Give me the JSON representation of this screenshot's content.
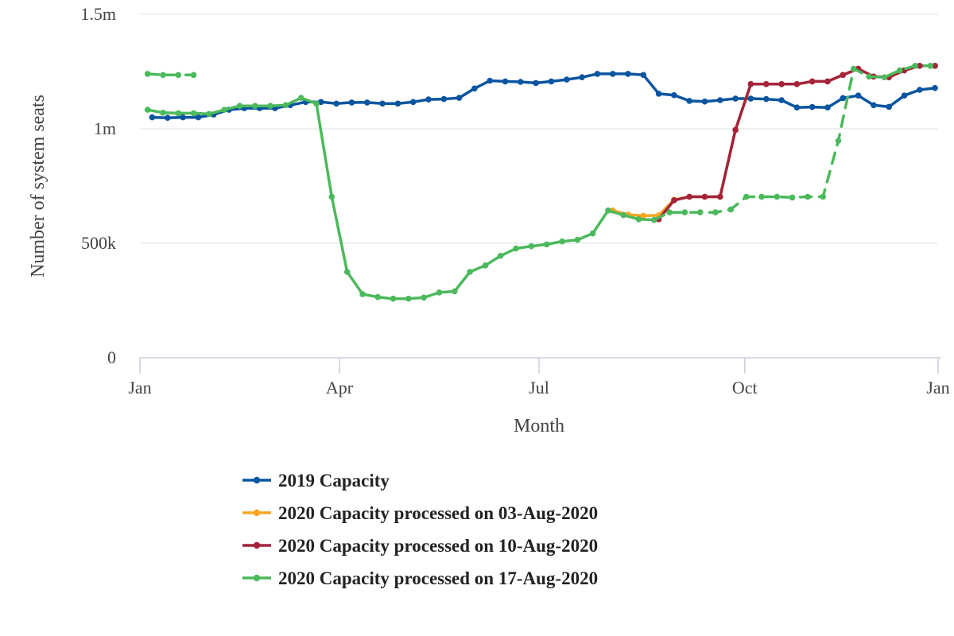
{
  "chart_data": {
    "type": "line",
    "xlabel": "Month",
    "ylabel": "Number of system seats",
    "xlim": [
      0,
      52
    ],
    "ylim": [
      0,
      1500000
    ],
    "x_ticks": [
      {
        "value": 0,
        "label": "Jan"
      },
      {
        "value": 13,
        "label": "Apr"
      },
      {
        "value": 26,
        "label": "Jul"
      },
      {
        "value": 39.4,
        "label": "Oct"
      },
      {
        "value": 52,
        "label": "Jan"
      }
    ],
    "y_ticks": [
      {
        "value": 0,
        "label": "0"
      },
      {
        "value": 500000,
        "label": "500k"
      },
      {
        "value": 1000000,
        "label": "1m"
      },
      {
        "value": 1500000,
        "label": "1.5m"
      }
    ],
    "grid": "horizontal",
    "legend_position": "bottom",
    "series": [
      {
        "name": "2019 Capacity",
        "color": "#0a55a0",
        "segments": [
          {
            "dashed": false,
            "points": [
              [
                0.8,
                1050000
              ],
              [
                1.8,
                1048000
              ],
              [
                2.8,
                1050000
              ],
              [
                3.8,
                1050000
              ],
              [
                4.8,
                1062000
              ],
              [
                5.8,
                1083000
              ],
              [
                6.8,
                1090000
              ],
              [
                7.8,
                1090000
              ],
              [
                8.8,
                1090000
              ],
              [
                9.8,
                1103000
              ],
              [
                10.8,
                1117000
              ],
              [
                11.8,
                1117000
              ],
              [
                12.8,
                1110000
              ],
              [
                13.8,
                1115000
              ],
              [
                14.8,
                1115000
              ],
              [
                15.8,
                1110000
              ],
              [
                16.8,
                1110000
              ],
              [
                17.8,
                1117000
              ],
              [
                18.8,
                1128000
              ],
              [
                19.8,
                1130000
              ],
              [
                20.8,
                1135000
              ],
              [
                21.8,
                1176000
              ],
              [
                22.8,
                1210000
              ],
              [
                23.8,
                1207000
              ],
              [
                24.8,
                1205000
              ],
              [
                25.8,
                1200000
              ],
              [
                26.8,
                1207000
              ],
              [
                27.8,
                1215000
              ],
              [
                28.8,
                1225000
              ],
              [
                29.8,
                1240000
              ],
              [
                30.8,
                1240000
              ],
              [
                31.8,
                1240000
              ],
              [
                32.8,
                1235000
              ],
              [
                33.8,
                1153000
              ],
              [
                34.8,
                1147000
              ],
              [
                35.8,
                1122000
              ],
              [
                36.8,
                1119000
              ],
              [
                37.8,
                1125000
              ],
              [
                38.8,
                1132000
              ],
              [
                39.8,
                1132000
              ],
              [
                40.8,
                1130000
              ],
              [
                41.8,
                1125000
              ],
              [
                42.8,
                1093000
              ],
              [
                43.8,
                1095000
              ],
              [
                44.8,
                1093000
              ],
              [
                45.8,
                1134000
              ],
              [
                46.8,
                1145000
              ],
              [
                47.8,
                1103000
              ],
              [
                48.8,
                1096000
              ],
              [
                49.8,
                1145000
              ],
              [
                50.8,
                1170000
              ],
              [
                51.8,
                1178000
              ]
            ]
          }
        ]
      },
      {
        "name": "2020 Capacity processed on 03-Aug-2020",
        "color": "#f5a623",
        "segments": [
          {
            "dashed": false,
            "points": [
              [
                30.8,
                643000
              ],
              [
                31.8,
                625000
              ],
              [
                32.8,
                620000
              ],
              [
                33.8,
                622000
              ],
              [
                34.8,
                690000
              ],
              [
                35.8,
                703000
              ],
              [
                36.8,
                703000
              ],
              [
                37.8,
                703000
              ],
              [
                38.8,
                995000
              ],
              [
                39.8,
                1195000
              ],
              [
                40.8,
                1195000
              ],
              [
                41.8,
                1195000
              ],
              [
                42.8,
                1195000
              ],
              [
                43.8,
                1207000
              ],
              [
                44.8,
                1207000
              ],
              [
                45.8,
                1235000
              ],
              [
                46.8,
                1262000
              ],
              [
                47.8,
                1228000
              ],
              [
                48.8,
                1225000
              ],
              [
                49.8,
                1255000
              ],
              [
                50.8,
                1275000
              ],
              [
                51.8,
                1275000
              ]
            ]
          }
        ]
      },
      {
        "name": "2020 Capacity processed on 10-Aug-2020",
        "color": "#a3243b",
        "segments": [
          {
            "dashed": false,
            "points": [
              [
                33.8,
                605000
              ],
              [
                34.8,
                688000
              ],
              [
                35.8,
                703000
              ],
              [
                36.8,
                703000
              ],
              [
                37.8,
                703000
              ],
              [
                38.8,
                995000
              ],
              [
                39.8,
                1195000
              ],
              [
                40.8,
                1195000
              ],
              [
                41.8,
                1195000
              ],
              [
                42.8,
                1195000
              ],
              [
                43.8,
                1207000
              ],
              [
                44.8,
                1207000
              ],
              [
                45.8,
                1235000
              ],
              [
                46.8,
                1262000
              ],
              [
                47.8,
                1228000
              ],
              [
                48.8,
                1225000
              ],
              [
                49.8,
                1255000
              ],
              [
                50.8,
                1275000
              ],
              [
                51.8,
                1275000
              ]
            ]
          }
        ]
      },
      {
        "name": "2020 Capacity processed on 17-Aug-2020",
        "color": "#4cb95c",
        "segments": [
          {
            "dashed": true,
            "points": [
              [
                0.5,
                1240000
              ],
              [
                1.5,
                1235000
              ],
              [
                2.5,
                1235000
              ],
              [
                3.5,
                1235000
              ]
            ]
          },
          {
            "dashed": false,
            "points": [
              [
                0.5,
                1083000
              ],
              [
                1.5,
                1070000
              ],
              [
                2.5,
                1068000
              ],
              [
                3.5,
                1068000
              ],
              [
                4.5,
                1065000
              ],
              [
                5.5,
                1083000
              ],
              [
                6.5,
                1100000
              ],
              [
                7.5,
                1100000
              ],
              [
                8.5,
                1100000
              ],
              [
                9.5,
                1103000
              ],
              [
                10.5,
                1135000
              ],
              [
                11.5,
                1110000
              ],
              [
                12.5,
                703000
              ],
              [
                13.5,
                375000
              ],
              [
                14.5,
                278000
              ],
              [
                15.5,
                265000
              ],
              [
                16.5,
                258000
              ],
              [
                17.5,
                258000
              ],
              [
                18.5,
                263000
              ],
              [
                19.5,
                285000
              ],
              [
                20.5,
                290000
              ],
              [
                21.5,
                375000
              ],
              [
                22.5,
                403000
              ],
              [
                23.5,
                445000
              ],
              [
                24.5,
                477000
              ],
              [
                25.5,
                487000
              ],
              [
                26.5,
                495000
              ],
              [
                27.5,
                508000
              ],
              [
                28.5,
                515000
              ],
              [
                29.5,
                543000
              ],
              [
                30.5,
                643000
              ],
              [
                31.5,
                623000
              ],
              [
                32.5,
                605000
              ],
              [
                33.5,
                602000
              ]
            ]
          },
          {
            "dashed": true,
            "points": [
              [
                33.5,
                602000
              ],
              [
                34.5,
                635000
              ],
              [
                35.5,
                635000
              ],
              [
                36.5,
                635000
              ],
              [
                37.5,
                635000
              ],
              [
                38.5,
                648000
              ],
              [
                39.5,
                703000
              ],
              [
                40.5,
                703000
              ],
              [
                41.5,
                703000
              ],
              [
                42.5,
                700000
              ],
              [
                43.5,
                703000
              ],
              [
                44.5,
                703000
              ],
              [
                45.5,
                948000
              ],
              [
                46.5,
                1262000
              ],
              [
                47.5,
                1228000
              ],
              [
                48.5,
                1225000
              ],
              [
                49.5,
                1255000
              ],
              [
                50.5,
                1275000
              ],
              [
                51.5,
                1275000
              ]
            ]
          }
        ]
      }
    ]
  }
}
